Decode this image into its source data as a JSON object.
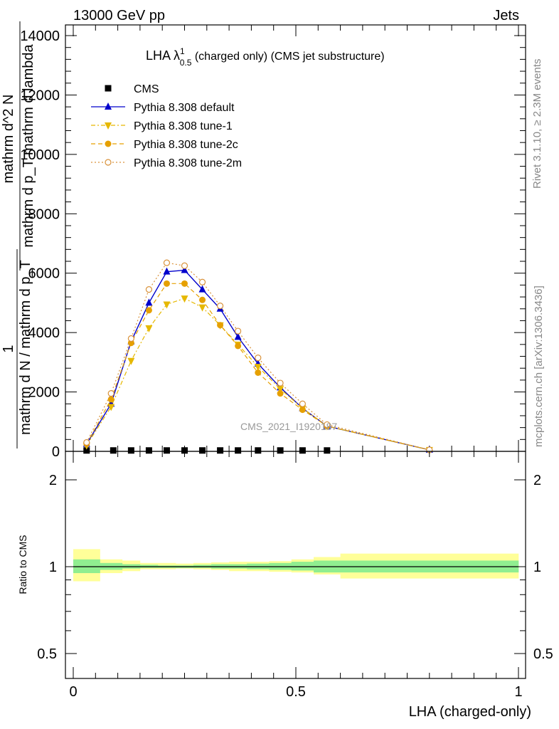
{
  "header": {
    "left": "13000 GeV pp",
    "right": "Jets"
  },
  "side": {
    "rivet": "Rivet 3.1.10, ≥ 2.3M events",
    "mcplots": "mcplots.cern.ch [arXiv:1306.3436]"
  },
  "watermark": "CMS_2021_I1920187",
  "chart_data": [
    {
      "type": "line",
      "panel": "main",
      "title_main": "LHA λ",
      "title_sup": "1",
      "title_sub": "0.5",
      "title_rest": " (charged only) (CMS jet substructure)",
      "ylabel_top_num": "1",
      "ylabel_top_den": "mathrm d N / mathrm d p_T",
      "ylabel_bottom_num": "mathrm d^2 N",
      "ylabel_bottom_den": "mathrm d p_T mathrm d lambda",
      "xlim": [
        0,
        1
      ],
      "ylim": [
        0,
        14000
      ],
      "yticks": [
        0,
        2000,
        4000,
        6000,
        8000,
        10000,
        12000,
        14000
      ],
      "ytick_labels": [
        "0",
        "2000",
        "4000",
        "6000",
        "8000",
        "10000",
        "12000",
        "14000"
      ],
      "legend_position": "top-left",
      "series": [
        {
          "name": "CMS",
          "color": "#000000",
          "marker": "square",
          "x": [
            0.03,
            0.09,
            0.13,
            0.17,
            0.21,
            0.25,
            0.29,
            0.33,
            0.37,
            0.415,
            0.465,
            0.515,
            0.57
          ],
          "y": [
            30,
            30,
            30,
            30,
            30,
            30,
            30,
            30,
            30,
            30,
            30,
            30,
            30
          ]
        },
        {
          "name": "Pythia 8.308 default",
          "color": "#0000cc",
          "marker": "triangle-up",
          "dash": "",
          "x": [
            0.03,
            0.085,
            0.13,
            0.17,
            0.21,
            0.25,
            0.29,
            0.33,
            0.37,
            0.415,
            0.465,
            0.515,
            0.57,
            0.8
          ],
          "y": [
            250,
            1600,
            3700,
            5000,
            6050,
            6100,
            5450,
            4800,
            3850,
            2950,
            2150,
            1450,
            850,
            50
          ]
        },
        {
          "name": "Pythia 8.308 tune-1",
          "color": "#e6b800",
          "marker": "triangle-down",
          "dash": "6,3,2,3",
          "x": [
            0.03,
            0.085,
            0.13,
            0.17,
            0.21,
            0.25,
            0.29,
            0.33,
            0.37,
            0.415,
            0.465,
            0.515,
            0.57,
            0.8
          ],
          "y": [
            200,
            1500,
            3050,
            4150,
            4950,
            5150,
            4850,
            4250,
            3600,
            2850,
            2100,
            1450,
            850,
            50
          ]
        },
        {
          "name": "Pythia 8.308 tune-2c",
          "color": "#e6a000",
          "marker": "circle-filled",
          "dash": "6,4",
          "x": [
            0.03,
            0.085,
            0.13,
            0.17,
            0.21,
            0.25,
            0.29,
            0.33,
            0.37,
            0.415,
            0.465,
            0.515,
            0.57,
            0.8
          ],
          "y": [
            250,
            1750,
            3650,
            4750,
            5650,
            5650,
            5100,
            4250,
            3550,
            2650,
            1950,
            1400,
            850,
            50
          ]
        },
        {
          "name": "Pythia 8.308 tune-2m",
          "color": "#d9923a",
          "marker": "circle-open",
          "dash": "2,3",
          "x": [
            0.03,
            0.085,
            0.13,
            0.17,
            0.21,
            0.25,
            0.29,
            0.33,
            0.37,
            0.415,
            0.465,
            0.515,
            0.57,
            0.8
          ],
          "y": [
            300,
            1950,
            3800,
            5450,
            6350,
            6250,
            5700,
            4900,
            4050,
            3150,
            2300,
            1600,
            900,
            50
          ]
        }
      ]
    },
    {
      "type": "area",
      "panel": "ratio",
      "ylabel": "Ratio to CMS",
      "xlabel": "LHA (charged-only)",
      "xlim": [
        0,
        1
      ],
      "ylim": [
        0.4,
        2.3
      ],
      "yscale": "log",
      "yticks": [
        0.5,
        1,
        2
      ],
      "ytick_labels": [
        "0.5",
        "1",
        "2"
      ],
      "xticks": [
        0,
        0.5,
        1
      ],
      "xtick_labels": [
        "0",
        "0.5",
        "1"
      ],
      "reference_line": 1,
      "bin_edges": [
        0,
        0.06,
        0.11,
        0.15,
        0.19,
        0.23,
        0.27,
        0.31,
        0.35,
        0.39,
        0.44,
        0.49,
        0.54,
        0.6,
        1.0
      ],
      "band_stat": {
        "name": "stat",
        "color": "#90ee90",
        "low": [
          0.95,
          0.975,
          0.985,
          0.99,
          0.99,
          0.99,
          0.99,
          0.985,
          0.985,
          0.98,
          0.975,
          0.97,
          0.955,
          0.955
        ],
        "high": [
          1.06,
          1.03,
          1.02,
          1.015,
          1.01,
          1.01,
          1.015,
          1.02,
          1.02,
          1.025,
          1.03,
          1.04,
          1.05,
          1.05
        ]
      },
      "band_total": {
        "name": "total",
        "color": "#ffff99",
        "low": [
          0.89,
          0.95,
          0.965,
          0.98,
          0.98,
          0.985,
          0.98,
          0.975,
          0.965,
          0.965,
          0.96,
          0.955,
          0.94,
          0.91
        ],
        "high": [
          1.15,
          1.06,
          1.05,
          1.03,
          1.03,
          1.025,
          1.03,
          1.035,
          1.04,
          1.04,
          1.045,
          1.06,
          1.08,
          1.11
        ]
      }
    }
  ]
}
